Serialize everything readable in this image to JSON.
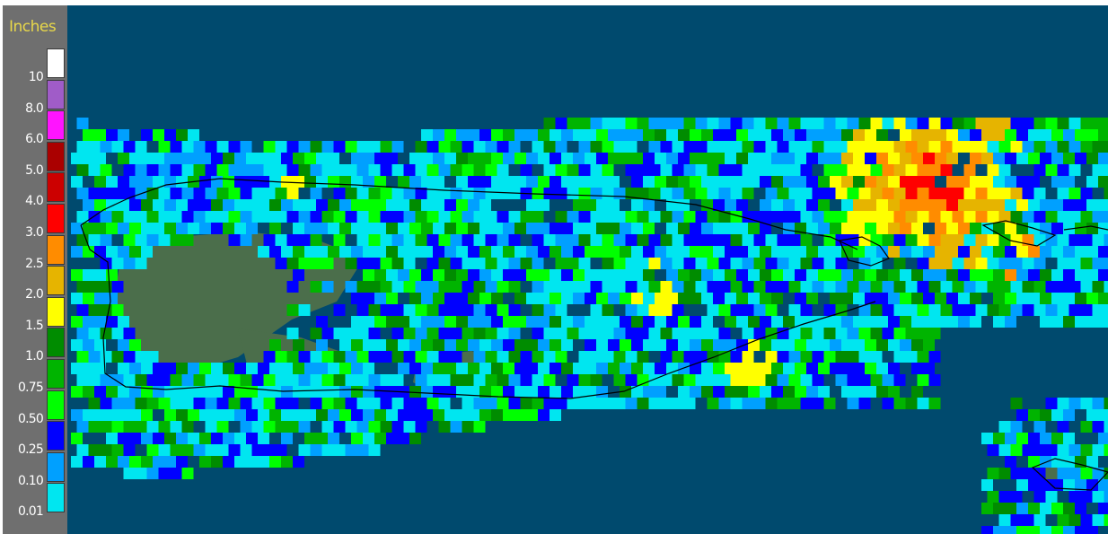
{
  "legend": {
    "title": "Inches",
    "bins": [
      {
        "label": "10",
        "color": "#ffffff"
      },
      {
        "label": "8.0",
        "color": "#a05cc8"
      },
      {
        "label": "6.0",
        "color": "#ff14ff"
      },
      {
        "label": "5.0",
        "color": "#aa0000"
      },
      {
        "label": "4.0",
        "color": "#cc0000"
      },
      {
        "label": "3.0",
        "color": "#ff0000"
      },
      {
        "label": "2.5",
        "color": "#ff8c00"
      },
      {
        "label": "2.0",
        "color": "#e6b400"
      },
      {
        "label": "1.5",
        "color": "#ffff00"
      },
      {
        "label": "1.0",
        "color": "#008c00"
      },
      {
        "label": "0.75",
        "color": "#00b400"
      },
      {
        "label": "0.50",
        "color": "#00ff00"
      },
      {
        "label": "0.25",
        "color": "#0000ff"
      },
      {
        "label": "0.10",
        "color": "#00a0ff"
      },
      {
        "label": "0.01",
        "color": "#00e6f0"
      }
    ]
  },
  "map": {
    "ocean_color": "#004a6e",
    "land_color": "#4b6e4b",
    "coastline_color": "#000000"
  }
}
